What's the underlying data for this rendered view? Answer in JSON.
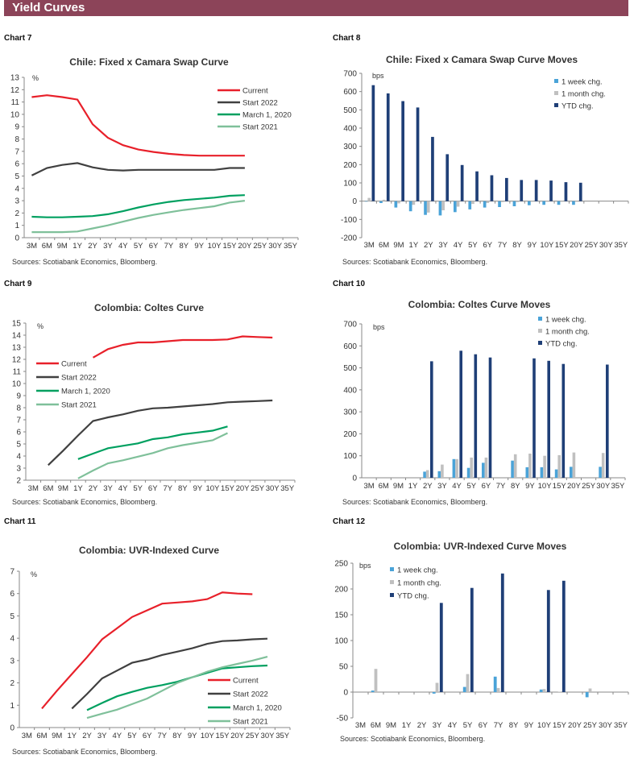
{
  "header": {
    "title": "Yield Curves"
  },
  "colors": {
    "header_bg": "#8c4459",
    "current": "#e8202a",
    "start2022": "#404040",
    "march2020": "#00a060",
    "start2021": "#7fc09a",
    "week": "#4aa3d8",
    "month": "#c0c0c0",
    "ytd": "#1f3f77"
  },
  "chart_data": [
    {
      "id": "c7",
      "label": "Chart 7",
      "type": "line",
      "title": "Chile: Fixed x Camara Swap Curve",
      "ylabel": "%",
      "ylim": [
        0,
        13
      ],
      "yticks": [
        0,
        1,
        2,
        3,
        4,
        5,
        6,
        7,
        8,
        9,
        10,
        11,
        12,
        13
      ],
      "categories": [
        "3M",
        "6M",
        "9M",
        "1Y",
        "2Y",
        "3Y",
        "4Y",
        "5Y",
        "6Y",
        "7Y",
        "8Y",
        "9Y",
        "10Y",
        "15Y",
        "20Y",
        "25Y",
        "30Y",
        "35Y"
      ],
      "legend": "top-right",
      "source": "Sources: Scotiabank Economics, Bloomberg.",
      "series": [
        {
          "name": "Current",
          "color": "#e8202a",
          "values": [
            11.4,
            11.55,
            11.4,
            11.2,
            9.2,
            8.1,
            7.5,
            7.15,
            6.95,
            6.8,
            6.7,
            6.65,
            6.65,
            6.65,
            6.65,
            null,
            null,
            null
          ]
        },
        {
          "name": "Start 2022",
          "color": "#404040",
          "values": [
            5.05,
            5.65,
            5.9,
            6.05,
            5.7,
            5.5,
            5.45,
            5.5,
            5.5,
            5.5,
            5.5,
            5.5,
            5.5,
            5.65,
            5.65,
            null,
            null,
            null
          ]
        },
        {
          "name": "March 1, 2020",
          "color": "#00a060",
          "values": [
            1.7,
            1.65,
            1.65,
            1.7,
            1.75,
            1.9,
            2.15,
            2.45,
            2.7,
            2.9,
            3.05,
            3.15,
            3.25,
            3.4,
            3.45,
            null,
            null,
            null
          ]
        },
        {
          "name": "Start 2021",
          "color": "#7fc09a",
          "values": [
            0.45,
            0.45,
            0.45,
            0.5,
            0.75,
            1.0,
            1.3,
            1.6,
            1.85,
            2.05,
            2.25,
            2.4,
            2.55,
            2.85,
            3.0,
            null,
            null,
            null
          ]
        }
      ]
    },
    {
      "id": "c8",
      "label": "Chart 8",
      "type": "bar",
      "title": "Chile: Fixed x Camara Swap Curve Moves",
      "ylabel": "bps",
      "ylim": [
        -200,
        700
      ],
      "yticks": [
        -200,
        -100,
        0,
        100,
        200,
        300,
        400,
        500,
        600,
        700
      ],
      "categories": [
        "3M",
        "6M",
        "9M",
        "1Y",
        "2Y",
        "3Y",
        "4Y",
        "5Y",
        "6Y",
        "7Y",
        "8Y",
        "9Y",
        "10Y",
        "15Y",
        "20Y",
        "25Y",
        "30Y",
        "35Y"
      ],
      "legend": "top-right",
      "source": "Sources: Scotiabank Economics, Bloomberg.",
      "series": [
        {
          "name": "1 week chg.",
          "color": "#4aa3d8",
          "values": [
            -2,
            -10,
            -35,
            -55,
            -75,
            -78,
            -60,
            -45,
            -35,
            -32,
            -28,
            -22,
            -20,
            -20,
            -20,
            null,
            null,
            null
          ]
        },
        {
          "name": "1 month chg.",
          "color": "#c0c0c0",
          "values": [
            18,
            8,
            -12,
            -20,
            -62,
            -50,
            -30,
            -15,
            -10,
            -5,
            -5,
            -3,
            -3,
            -3,
            -3,
            null,
            null,
            null
          ]
        },
        {
          "name": "YTD chg.",
          "color": "#1f3f77",
          "values": [
            635,
            590,
            548,
            513,
            352,
            257,
            198,
            163,
            142,
            127,
            116,
            116,
            113,
            104,
            101,
            null,
            null,
            null
          ]
        }
      ]
    },
    {
      "id": "c9",
      "label": "Chart 9",
      "type": "line",
      "title": "Colombia: Coltes Curve",
      "ylabel": "%",
      "ylim": [
        2,
        15
      ],
      "yticks": [
        2,
        3,
        4,
        5,
        6,
        7,
        8,
        9,
        10,
        11,
        12,
        13,
        14,
        15
      ],
      "categories": [
        "3M",
        "6M",
        "9M",
        "1Y",
        "2Y",
        "3Y",
        "4Y",
        "5Y",
        "6Y",
        "7Y",
        "8Y",
        "9Y",
        "10Y",
        "15Y",
        "20Y",
        "25Y",
        "30Y",
        "35Y"
      ],
      "legend": "left",
      "source": "Sources: Scotiabank Economics,  Bloomberg.",
      "series": [
        {
          "name": "Current",
          "color": "#e8202a",
          "values": [
            null,
            null,
            null,
            null,
            12.15,
            12.85,
            13.2,
            13.4,
            13.4,
            13.5,
            13.6,
            13.6,
            13.6,
            13.65,
            13.9,
            13.85,
            13.8,
            null
          ]
        },
        {
          "name": "Start 2022",
          "color": "#404040",
          "values": [
            null,
            3.25,
            4.45,
            5.7,
            6.9,
            7.2,
            7.45,
            7.75,
            7.95,
            8.0,
            8.1,
            8.2,
            8.3,
            8.45,
            8.5,
            8.55,
            8.6,
            null
          ]
        },
        {
          "name": "March 1, 2020",
          "color": "#00a060",
          "values": [
            null,
            null,
            null,
            3.75,
            4.2,
            4.65,
            4.85,
            5.05,
            5.4,
            5.55,
            5.8,
            5.95,
            6.1,
            6.45,
            null,
            null,
            null,
            null
          ]
        },
        {
          "name": "Start 2021",
          "color": "#7fc09a",
          "values": [
            null,
            null,
            null,
            2.15,
            2.8,
            3.4,
            3.65,
            3.95,
            4.25,
            4.65,
            4.9,
            5.1,
            5.3,
            5.9,
            null,
            null,
            null,
            null
          ]
        }
      ]
    },
    {
      "id": "c10",
      "label": "Chart 10",
      "type": "bar",
      "title": "Colombia: Coltes Curve Moves",
      "ylabel": "bps",
      "ylim": [
        0,
        700
      ],
      "yticks": [
        0,
        100,
        200,
        300,
        400,
        500,
        600,
        700
      ],
      "categories": [
        "3M",
        "6M",
        "9M",
        "1Y",
        "2Y",
        "3Y",
        "4Y",
        "5Y",
        "6Y",
        "7Y",
        "8Y",
        "9Y",
        "10Y",
        "15Y",
        "20Y",
        "25Y",
        "30Y",
        "35Y"
      ],
      "legend": "top-right",
      "source": "Sources: Scotiabank Economics, Bloomberg.",
      "series": [
        {
          "name": "1 week chg.",
          "color": "#4aa3d8",
          "values": [
            null,
            null,
            null,
            null,
            28,
            30,
            85,
            45,
            68,
            null,
            78,
            48,
            48,
            38,
            50,
            null,
            50,
            null
          ]
        },
        {
          "name": "1 month chg.",
          "color": "#c0c0c0",
          "values": [
            null,
            null,
            null,
            null,
            35,
            60,
            85,
            92,
            92,
            null,
            107,
            110,
            100,
            103,
            115,
            null,
            113,
            null
          ]
        },
        {
          "name": "YTD chg.",
          "color": "#1f3f77",
          "values": [
            null,
            null,
            null,
            null,
            530,
            null,
            578,
            562,
            547,
            null,
            null,
            543,
            532,
            518,
            null,
            null,
            515,
            null
          ]
        }
      ]
    },
    {
      "id": "c11",
      "label": "Chart 11",
      "type": "line",
      "title": "Colombia: UVR-Indexed Curve",
      "ylabel": "%",
      "ylim": [
        0,
        7
      ],
      "yticks": [
        0,
        1,
        2,
        3,
        4,
        5,
        6,
        7
      ],
      "categories": [
        "3M",
        "6M",
        "9M",
        "1Y",
        "2Y",
        "3Y",
        "4Y",
        "5Y",
        "6Y",
        "7Y",
        "8Y",
        "9Y",
        "10Y",
        "15Y",
        "20Y",
        "25Y",
        "30Y",
        "35Y"
      ],
      "legend": "bottom-right",
      "source": "Sources: Scotiabank Economics, Bloomberg.",
      "series": [
        {
          "name": "Current",
          "color": "#e8202a",
          "values": [
            null,
            0.85,
            1.65,
            2.4,
            3.15,
            3.95,
            4.45,
            4.95,
            5.25,
            5.55,
            5.6,
            5.65,
            5.75,
            6.05,
            6.0,
            5.97,
            null,
            null
          ]
        },
        {
          "name": "Start 2022",
          "color": "#404040",
          "values": [
            null,
            null,
            null,
            0.85,
            1.5,
            2.2,
            2.55,
            2.9,
            3.05,
            3.25,
            3.4,
            3.55,
            3.75,
            3.87,
            3.9,
            3.95,
            3.98,
            null
          ]
        },
        {
          "name": "March 1, 2020",
          "color": "#00a060",
          "values": [
            null,
            null,
            null,
            null,
            0.78,
            1.1,
            1.4,
            1.6,
            1.78,
            1.9,
            2.05,
            2.25,
            2.45,
            2.65,
            2.7,
            2.75,
            2.78,
            null
          ]
        },
        {
          "name": "Start 2021",
          "color": "#7fc09a",
          "values": [
            null,
            null,
            null,
            null,
            0.43,
            0.62,
            0.8,
            1.05,
            1.3,
            1.65,
            2.0,
            2.25,
            2.5,
            2.7,
            2.85,
            3.0,
            3.17,
            null
          ]
        }
      ]
    },
    {
      "id": "c12",
      "label": "Chart 12",
      "type": "bar",
      "title": "Colombia: UVR-Indexed Curve Moves",
      "ylabel": "bps",
      "ylim": [
        -50,
        250
      ],
      "yticks": [
        -50,
        0,
        50,
        100,
        150,
        200,
        250
      ],
      "categories": [
        "3M",
        "6M",
        "9M",
        "1Y",
        "2Y",
        "3Y",
        "4Y",
        "5Y",
        "6Y",
        "7Y",
        "8Y",
        "9Y",
        "10Y",
        "15Y",
        "20Y",
        "25Y",
        "30Y",
        "35Y"
      ],
      "legend": "top-left",
      "source": "Sources: Scotiabank Economics, Bloomberg.",
      "series": [
        {
          "name": "1 week chg.",
          "color": "#4aa3d8",
          "values": [
            null,
            3,
            null,
            null,
            null,
            -3,
            null,
            10,
            null,
            30,
            null,
            null,
            5,
            null,
            null,
            -10,
            null,
            null
          ]
        },
        {
          "name": "1 month chg.",
          "color": "#c0c0c0",
          "values": [
            null,
            45,
            null,
            null,
            null,
            18,
            null,
            35,
            null,
            8,
            null,
            null,
            6,
            1,
            null,
            7,
            null,
            null
          ]
        },
        {
          "name": "YTD chg.",
          "color": "#1f3f77",
          "values": [
            null,
            null,
            null,
            null,
            null,
            173,
            null,
            202,
            null,
            230,
            null,
            null,
            198,
            216,
            null,
            null,
            null,
            null
          ]
        }
      ]
    }
  ]
}
